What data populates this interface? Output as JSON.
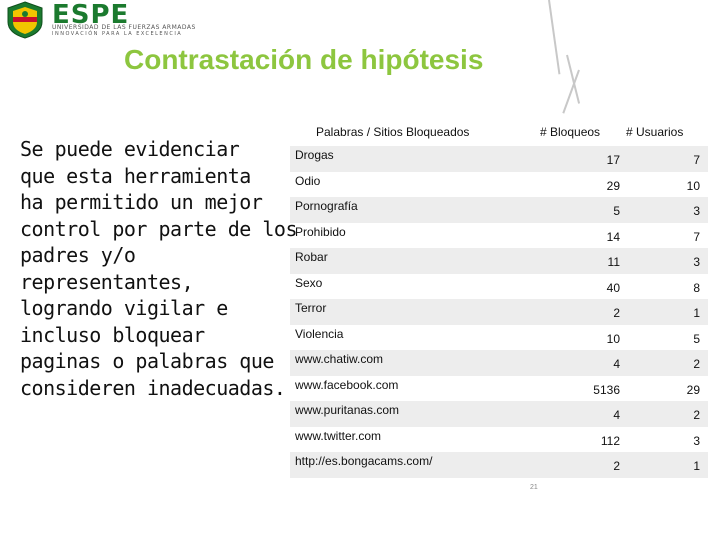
{
  "logo": {
    "brand": "ESPE",
    "subtitle_1": "UNIVERSIDAD DE LAS FUERZAS ARMADAS",
    "subtitle_2": "INNOVACIÓN PARA LA EXCELENCIA",
    "colors": {
      "green": "#1b7a2e",
      "yellow": "#f2c500",
      "red": "#c8102e"
    }
  },
  "slide": {
    "title": "Contrastación de hipótesis",
    "title_color": "#8dc63f",
    "body_lines": [
      "Se puede evidenciar",
      "que esta herramienta",
      "ha permitido un mejor",
      "control por parte de los",
      "padres y/o",
      "representantes,",
      "logrando vigilar e",
      "incluso bloquear",
      "paginas o palabras que",
      "consideren inadecuadas."
    ],
    "page_number": "21"
  },
  "table": {
    "headers": [
      "Palabras / Sitios Bloqueados",
      "# Bloqueos",
      "# Usuarios"
    ],
    "rows": [
      {
        "name": "Drogas",
        "bloqueos": "17",
        "usuarios": "7"
      },
      {
        "name": "Odio",
        "bloqueos": "29",
        "usuarios": "10"
      },
      {
        "name": "Pornografía",
        "bloqueos": "5",
        "usuarios": "3"
      },
      {
        "name": "Prohibido",
        "bloqueos": "14",
        "usuarios": "7"
      },
      {
        "name": "Robar",
        "bloqueos": "11",
        "usuarios": "3"
      },
      {
        "name": "Sexo",
        "bloqueos": "40",
        "usuarios": "8"
      },
      {
        "name": "Terror",
        "bloqueos": "2",
        "usuarios": "1"
      },
      {
        "name": "Violencia",
        "bloqueos": "10",
        "usuarios": "5"
      },
      {
        "name": "www.chatiw.com",
        "bloqueos": "4",
        "usuarios": "2"
      },
      {
        "name": "www.facebook.com",
        "bloqueos": "5136",
        "usuarios": "29"
      },
      {
        "name": "www.puritanas.com",
        "bloqueos": "4",
        "usuarios": "2"
      },
      {
        "name": "www.twitter.com",
        "bloqueos": "112",
        "usuarios": "3"
      },
      {
        "name": "http://es.bongacams.com/",
        "bloqueos": "2",
        "usuarios": "1"
      }
    ]
  }
}
